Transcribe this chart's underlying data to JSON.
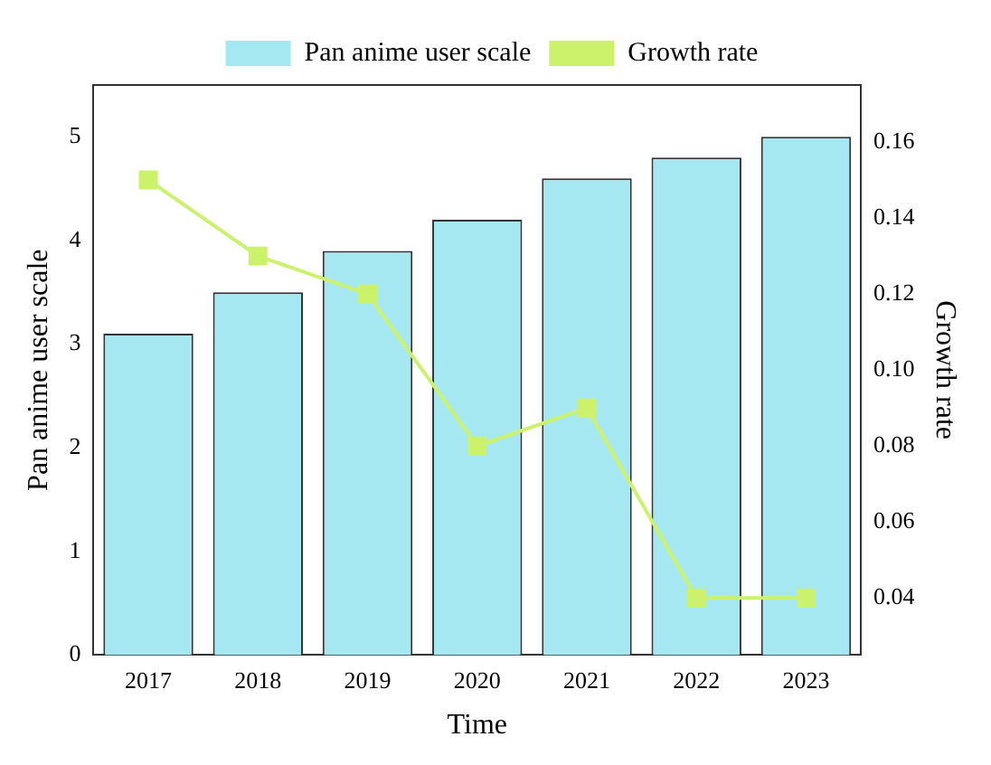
{
  "chart_data": {
    "type": "bar",
    "xlabel": "Time",
    "ylabel": "Pan anime user scale",
    "y2label": "Growth rate",
    "categories": [
      "2017",
      "2018",
      "2019",
      "2020",
      "2021",
      "2022",
      "2023"
    ],
    "series": [
      {
        "name": "Pan anime user scale",
        "color": "#a6e8f2",
        "values": [
          3.1,
          3.5,
          3.9,
          4.2,
          4.6,
          4.8,
          5.0
        ]
      },
      {
        "name": "Growth rate",
        "type": "line",
        "axis": "y2",
        "color": "#ccf26b",
        "marker": "square",
        "values": [
          0.15,
          0.13,
          0.12,
          0.08,
          0.09,
          0.04,
          0.04
        ]
      }
    ],
    "ylim": [
      0,
      5.5
    ],
    "yticks": [
      0,
      1,
      2,
      3,
      4,
      5
    ],
    "y2lim": [
      0.025,
      0.175
    ],
    "y2ticks": [
      0.04,
      0.06,
      0.08,
      {
        "value": 0.1,
        "label": "0.10"
      },
      0.12,
      0.14,
      0.16
    ],
    "grid": false,
    "legend": "top"
  }
}
